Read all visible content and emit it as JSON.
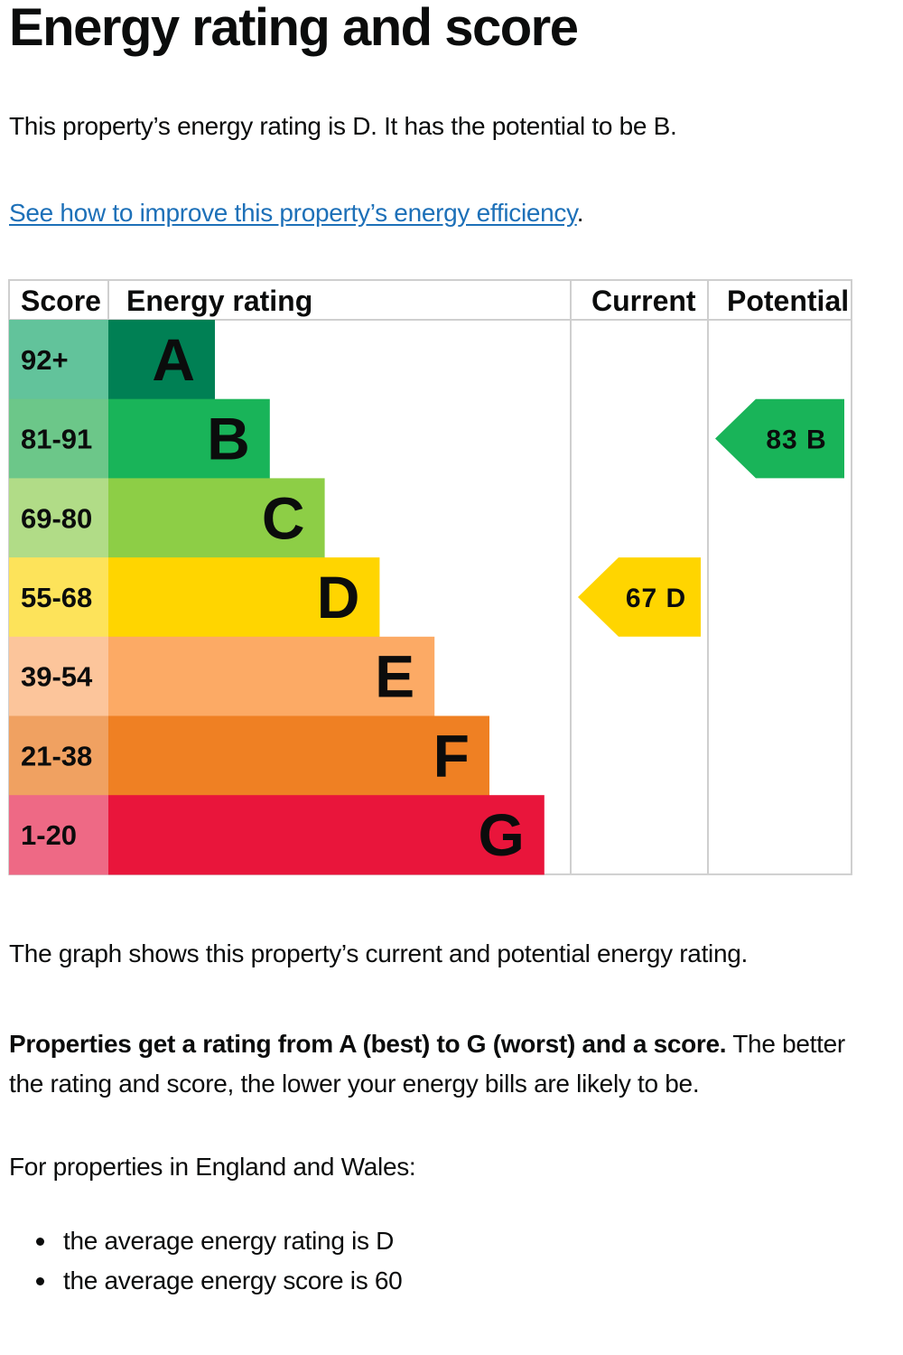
{
  "heading": "Energy rating and score",
  "intro": "This property’s energy rating is D. It has the potential to be B.",
  "improve_link": {
    "text": "See how to improve this property’s energy efficiency",
    "suffix": "."
  },
  "chart_data": {
    "type": "bar",
    "columns": [
      "Score",
      "Energy rating",
      "Current",
      "Potential"
    ],
    "bands": [
      {
        "score": "92+",
        "rating": "A",
        "color": "#008054",
        "score_color": "#62c39b"
      },
      {
        "score": "81-91",
        "rating": "B",
        "color": "#19b459",
        "score_color": "#6cc789"
      },
      {
        "score": "69-80",
        "rating": "C",
        "color": "#8dce46",
        "score_color": "#b1dc87"
      },
      {
        "score": "55-68",
        "rating": "D",
        "color": "#ffd500",
        "score_color": "#fde35a"
      },
      {
        "score": "39-54",
        "rating": "E",
        "color": "#fcaa65",
        "score_color": "#fcc59b"
      },
      {
        "score": "21-38",
        "rating": "F",
        "color": "#ef8023",
        "score_color": "#f0a161"
      },
      {
        "score": "1-20",
        "rating": "G",
        "color": "#e9153b",
        "score_color": "#ee6985"
      }
    ],
    "current": {
      "score": 67,
      "rating": "D",
      "label": "67 D",
      "color": "#ffd500"
    },
    "potential": {
      "score": 83,
      "rating": "B",
      "label": "83 B",
      "color": "#19b459"
    }
  },
  "graph_caption": "The graph shows this property’s current and potential energy rating.",
  "explanation": {
    "bold": "Properties get a rating from A (best) to G (worst) and a score.",
    "rest": " The better the rating and score, the lower your energy bills are likely to be."
  },
  "regional_intro": "For properties in England and Wales:",
  "averages": [
    "the average energy rating is D",
    "the average energy score is 60"
  ]
}
